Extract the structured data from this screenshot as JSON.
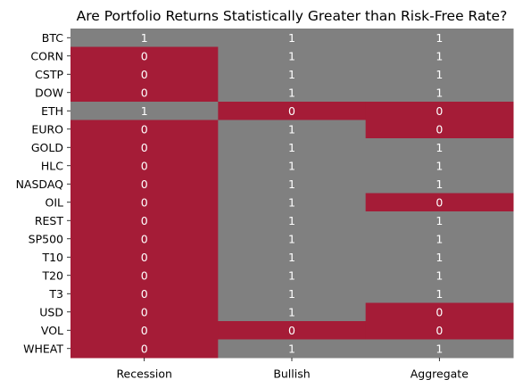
{
  "chart_data": {
    "type": "heatmap",
    "title": "Are Portfolio Returns Statistically Greater than Risk-Free Rate?",
    "columns": [
      "Recession",
      "Bullish",
      "Aggregate"
    ],
    "rows": [
      "BTC",
      "CORN",
      "CSTP",
      "DOW",
      "ETH",
      "EURO",
      "GOLD",
      "HLC",
      "NASDAQ",
      "OIL",
      "REST",
      "SP500",
      "T10",
      "T20",
      "T3",
      "USD",
      "VOL",
      "WHEAT"
    ],
    "values": [
      [
        1,
        1,
        1
      ],
      [
        0,
        1,
        1
      ],
      [
        0,
        1,
        1
      ],
      [
        0,
        1,
        1
      ],
      [
        1,
        0,
        0
      ],
      [
        0,
        1,
        0
      ],
      [
        0,
        1,
        1
      ],
      [
        0,
        1,
        1
      ],
      [
        0,
        1,
        1
      ],
      [
        0,
        1,
        0
      ],
      [
        0,
        1,
        1
      ],
      [
        0,
        1,
        1
      ],
      [
        0,
        1,
        1
      ],
      [
        0,
        1,
        1
      ],
      [
        0,
        1,
        1
      ],
      [
        0,
        1,
        0
      ],
      [
        0,
        0,
        0
      ],
      [
        0,
        1,
        1
      ]
    ],
    "colors": {
      "0": "#a51c37",
      "1": "#808080"
    },
    "legend": "none",
    "grid": false
  }
}
